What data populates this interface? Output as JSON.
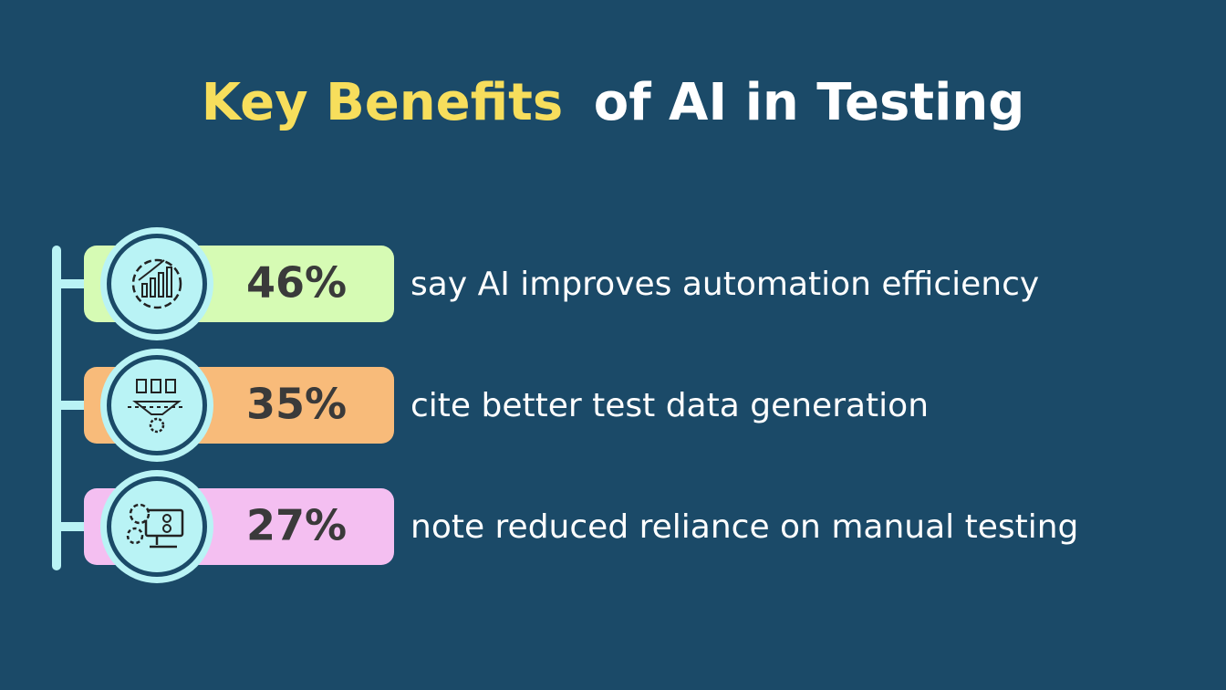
{
  "title": {
    "highlight": "Key Benefits",
    "rest": "of AI in Testing"
  },
  "items": [
    {
      "stat": "46%",
      "text": "say AI improves automation efficiency",
      "color": "#d6fbb4"
    },
    {
      "stat": "35%",
      "text": "cite better test data generation",
      "color": "#f8bb7a"
    },
    {
      "stat": "27%",
      "text": "note reduced reliance on manual testing",
      "color": "#f4bff1"
    }
  ]
}
